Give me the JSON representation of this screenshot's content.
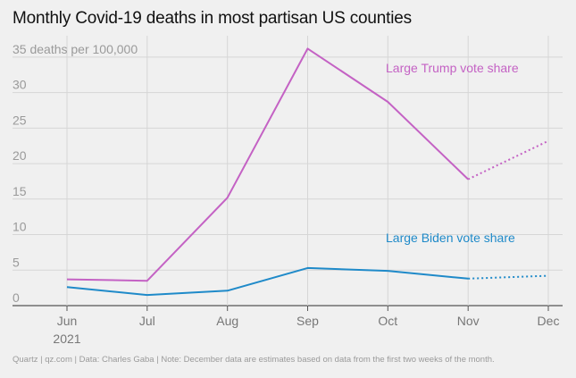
{
  "title": "Monthly Covid-19 deaths in most partisan US counties",
  "source": "Quartz | qz.com | Data: Charles Gaba | Note: December data are estimates based on data from the first two weeks of the month.",
  "chart_data": {
    "type": "line",
    "title": "Monthly Covid-19 deaths in most partisan US counties",
    "ylabel": "35 deaths per 100,000",
    "categories": [
      "Jun",
      "Jul",
      "Aug",
      "Sep",
      "Oct",
      "Nov",
      "Dec"
    ],
    "x_sub_label": "2021",
    "yticks": [
      0,
      5,
      10,
      15,
      20,
      25,
      30,
      35
    ],
    "ytick_labels": [
      "0",
      "5",
      "10",
      "15",
      "20",
      "25",
      "30",
      "35 deaths per 100,000"
    ],
    "ylim": [
      0,
      37
    ],
    "estimated_from_index": 5,
    "series": [
      {
        "name": "Large Trump vote share",
        "color": "#c462c4",
        "values": [
          3.7,
          3.5,
          15.2,
          36.2,
          28.7,
          17.8,
          23.2
        ]
      },
      {
        "name": "Large Biden vote share",
        "color": "#1f8ac9",
        "values": [
          2.6,
          1.5,
          2.1,
          5.3,
          4.9,
          3.8,
          4.2
        ]
      }
    ]
  }
}
